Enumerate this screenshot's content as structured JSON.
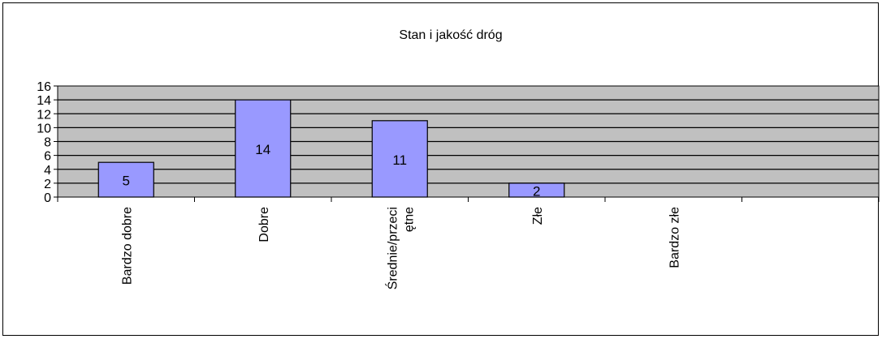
{
  "chart_data": {
    "type": "bar",
    "title": "Stan i jakość dróg",
    "categories": [
      "Bardzo dobre",
      "Dobre",
      "Średnie/przeciętne",
      "Złe",
      "Bardzo złe",
      ""
    ],
    "category_label_lines": [
      [
        "Bardzo dobre"
      ],
      [
        "Dobre"
      ],
      [
        "Średnie/przeci",
        "ętne"
      ],
      [
        "Złe"
      ],
      [
        "Bardzo złe"
      ],
      [
        ""
      ]
    ],
    "values": [
      5,
      14,
      11,
      2,
      0,
      null
    ],
    "data_labels": [
      "5",
      "14",
      "11",
      "2",
      "",
      ""
    ],
    "ylim": [
      0,
      16
    ],
    "yticks": [
      0,
      2,
      4,
      6,
      8,
      10,
      12,
      14,
      16
    ],
    "grid": true,
    "legend": false,
    "colors": {
      "bar": "#9999ff",
      "plot_area": "#c0c0c0",
      "grid": "#000000"
    }
  }
}
